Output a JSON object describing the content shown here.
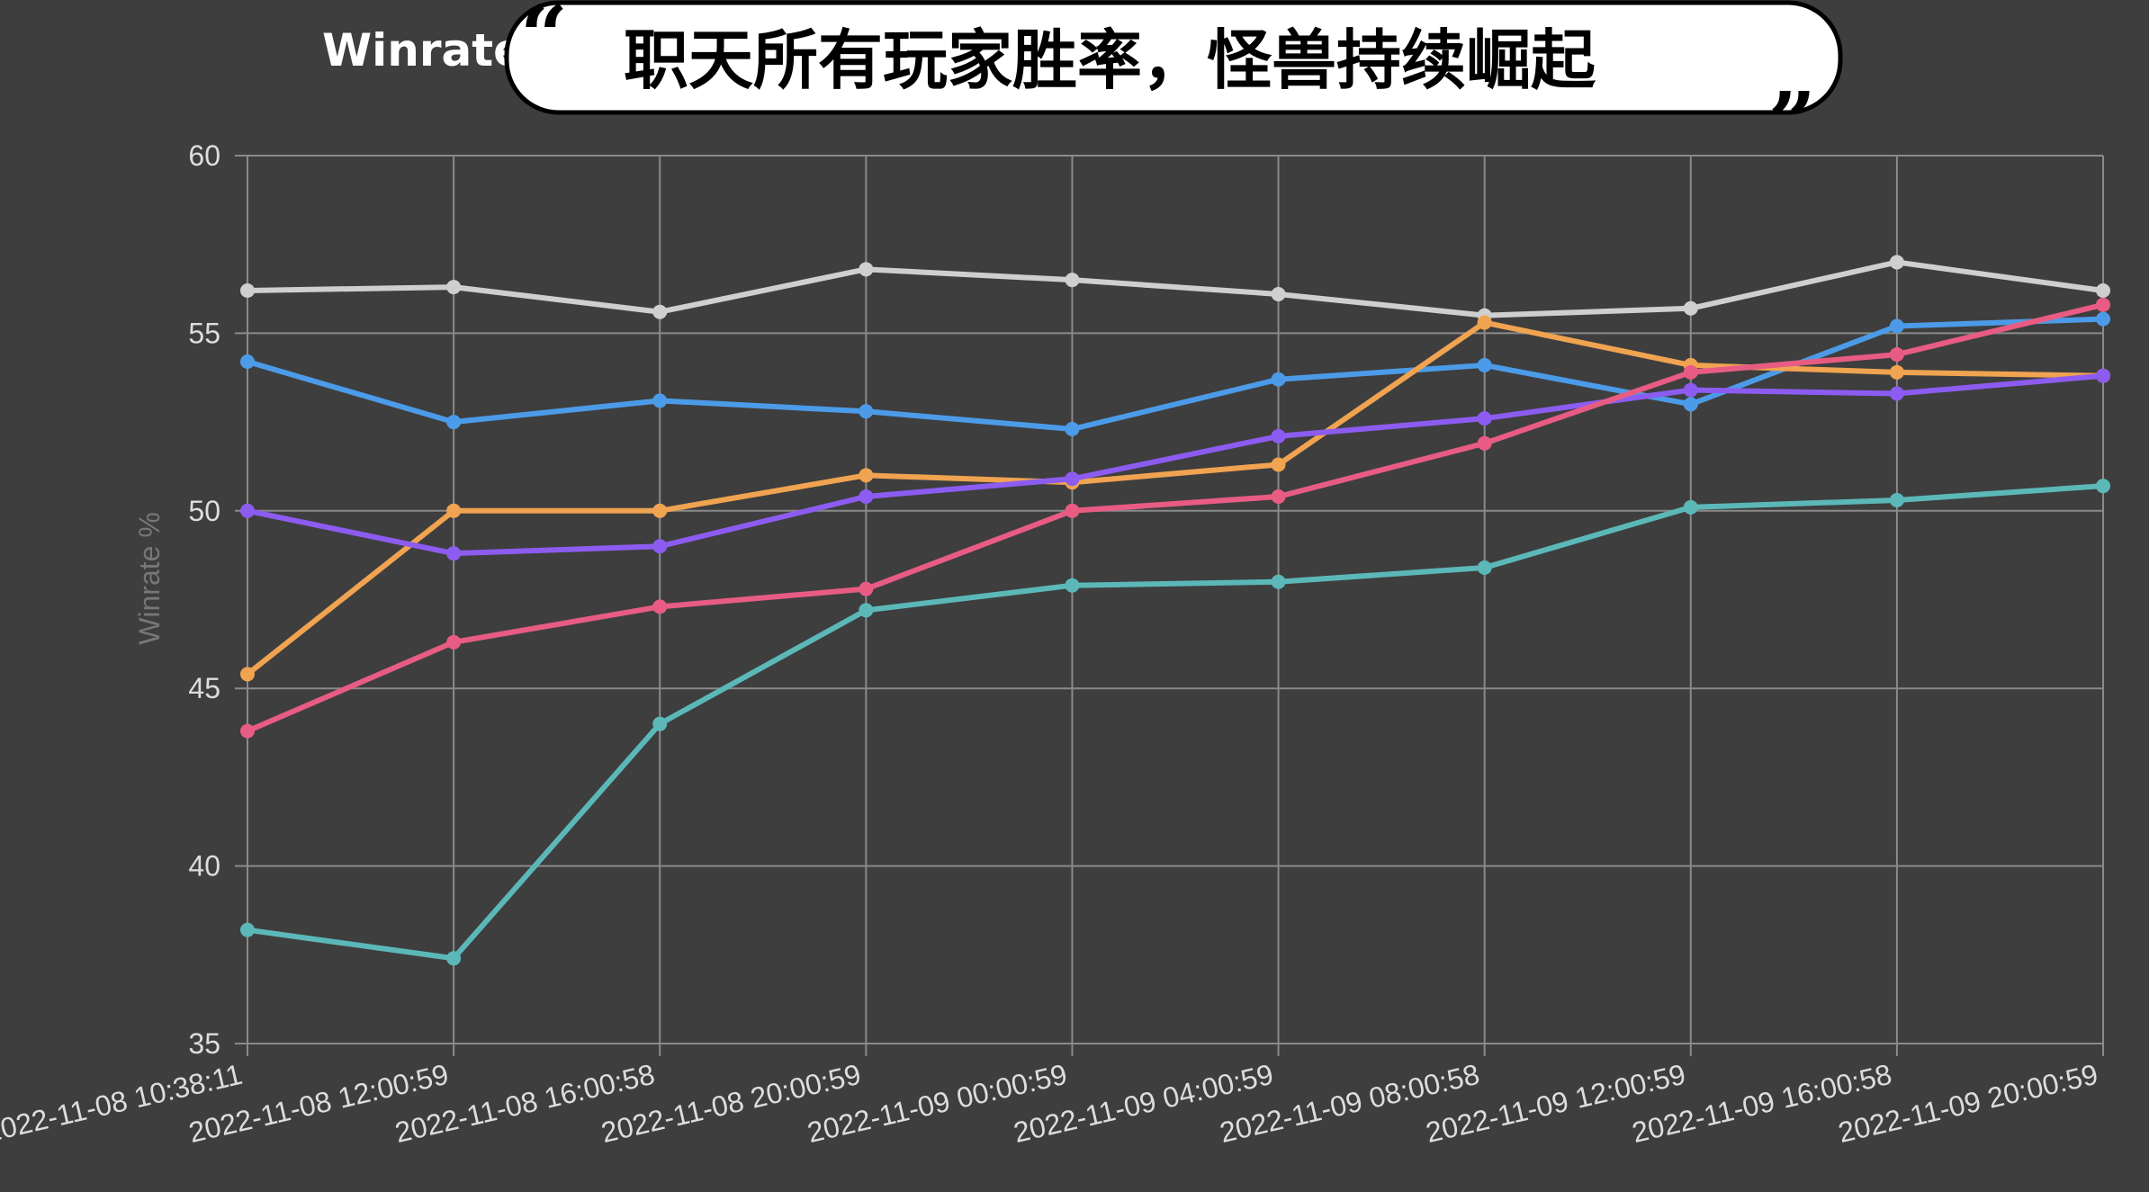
{
  "banner": {
    "open_quote": "“",
    "text": "职天所有玩家胜率，怪兽持续崛起",
    "close_quote": "”"
  },
  "chart_data": {
    "type": "line",
    "title": "Winrate",
    "xlabel": "",
    "ylabel": "Winrate %",
    "ylim": [
      35,
      60
    ],
    "yticks": [
      35,
      40,
      45,
      50,
      55,
      60
    ],
    "grid": true,
    "categories": [
      "2022-11-08 10:38:11",
      "2022-11-08 12:00:59",
      "2022-11-08 16:00:58",
      "2022-11-08 20:00:59",
      "2022-11-09 00:00:59",
      "2022-11-09 04:00:59",
      "2022-11-09 08:00:58",
      "2022-11-09 12:00:59",
      "2022-11-09 16:00:58",
      "2022-11-09 20:00:59"
    ],
    "series": [
      {
        "color": "#cfcfcf",
        "values": [
          56.2,
          56.3,
          55.6,
          56.8,
          56.5,
          56.1,
          55.5,
          55.7,
          57.0,
          56.2
        ]
      },
      {
        "color": "#4c9be8",
        "values": [
          54.2,
          52.5,
          53.1,
          52.8,
          52.3,
          53.7,
          54.1,
          53.0,
          55.2,
          55.4
        ]
      },
      {
        "color": "#f0a350",
        "values": [
          45.4,
          50.0,
          50.0,
          51.0,
          50.8,
          51.3,
          55.3,
          54.1,
          53.9,
          53.8
        ]
      },
      {
        "color": "#8c5cf0",
        "values": [
          50.0,
          48.8,
          49.0,
          50.4,
          50.9,
          52.1,
          52.6,
          53.4,
          53.3,
          53.8
        ]
      },
      {
        "color": "#e85c84",
        "values": [
          43.8,
          46.3,
          47.3,
          47.8,
          50.0,
          50.4,
          51.9,
          53.9,
          54.4,
          55.8
        ]
      },
      {
        "color": "#5cb8b8",
        "values": [
          38.2,
          37.4,
          44.0,
          47.2,
          47.9,
          48.0,
          48.4,
          50.1,
          50.3,
          50.7
        ]
      }
    ]
  }
}
